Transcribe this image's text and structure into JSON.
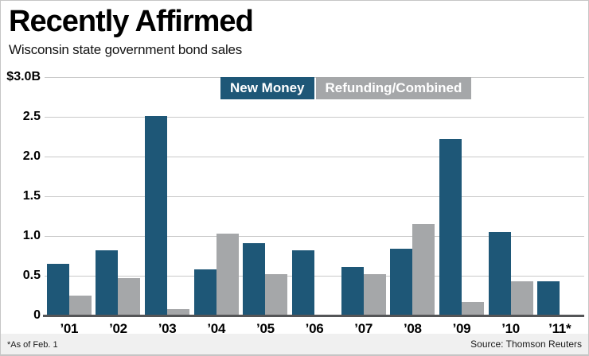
{
  "header": {
    "title": "Recently Affirmed",
    "subtitle": "Wisconsin state government bond sales"
  },
  "footer": {
    "note": "*As of Feb. 1",
    "source": "Source: Thomson Reuters"
  },
  "colors": {
    "new_money": "#1e5777",
    "refunding": "#a5a7a9",
    "gridline": "#c9c9c9",
    "axis": "#545557"
  },
  "chart_data": {
    "type": "bar",
    "title": "Recently Affirmed",
    "subtitle": "Wisconsin state government bond sales",
    "categories": [
      "’01",
      "’02",
      "’03",
      "’04",
      "’05",
      "’06",
      "’07",
      "’08",
      "’09",
      "’10",
      "’11*"
    ],
    "series": [
      {
        "name": "New Money",
        "color": "#1e5777",
        "values": [
          0.65,
          0.82,
          2.51,
          0.58,
          0.91,
          0.82,
          0.61,
          0.84,
          2.22,
          1.05,
          0.43
        ]
      },
      {
        "name": "Refunding/Combined",
        "color": "#a5a7a9",
        "values": [
          0.25,
          0.47,
          0.08,
          1.03,
          0.52,
          null,
          0.52,
          1.15,
          0.17,
          0.43,
          null
        ]
      }
    ],
    "xlabel": "",
    "ylabel": "$3.0B",
    "ylim": [
      0,
      3.0
    ],
    "yticks": [
      {
        "value": 0,
        "label": "0"
      },
      {
        "value": 0.5,
        "label": "0.5"
      },
      {
        "value": 1.0,
        "label": "1.0"
      },
      {
        "value": 1.5,
        "label": "1.5"
      },
      {
        "value": 2.0,
        "label": "2.0"
      },
      {
        "value": 2.5,
        "label": "2.5"
      },
      {
        "value": 3.0,
        "label": "$3.0B"
      }
    ],
    "grid": true,
    "legend_position": "top-center",
    "units": "billions USD"
  }
}
